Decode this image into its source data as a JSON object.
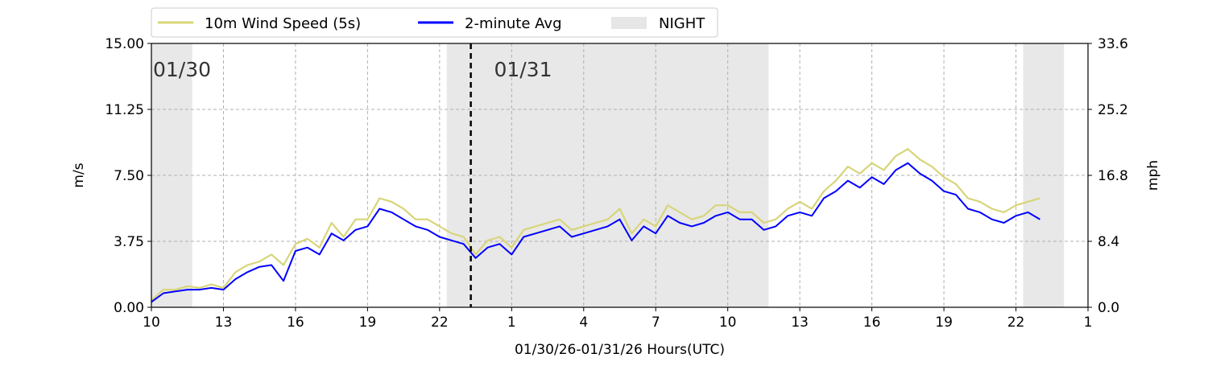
{
  "chart_data": {
    "type": "line",
    "title": "",
    "xlabel": "01/30/26-01/31/26  Hours(UTC)",
    "ylabel": "m/s",
    "ylabel_right": "mph",
    "ylim": [
      0,
      15
    ],
    "ylim_right": [
      0,
      33.6
    ],
    "xlim": [
      10,
      49
    ],
    "x_ticks": [
      10,
      13,
      16,
      19,
      22,
      25,
      28,
      31,
      34,
      37,
      40,
      43,
      46,
      49
    ],
    "x_tick_labels": [
      "10",
      "13",
      "16",
      "19",
      "22",
      "1",
      "4",
      "7",
      "10",
      "13",
      "16",
      "19",
      "22",
      "1"
    ],
    "y_ticks": [
      0,
      3.75,
      7.5,
      11.25,
      15
    ],
    "y_tick_labels": [
      "0.00",
      "3.75",
      "7.50",
      "11.25",
      "15.00"
    ],
    "y_ticks_right": [
      0,
      8.4,
      16.8,
      25.2,
      33.6
    ],
    "y_tick_labels_right": [
      "0.0",
      "8.4",
      "16.8",
      "25.2",
      "33.6"
    ],
    "grid": true,
    "legend_position": "top-left, above plot",
    "legend": [
      {
        "label": "10m Wind Speed (5s)",
        "color": "#d8d57a",
        "kind": "line"
      },
      {
        "label": "2-minute Avg",
        "color": "#0000ff",
        "kind": "line"
      },
      {
        "label": "NIGHT",
        "color": "#e6e6e6",
        "kind": "patch"
      }
    ],
    "night_periods": [
      [
        10,
        11.7
      ],
      [
        22.3,
        35.7
      ],
      [
        46.3,
        48.0
      ]
    ],
    "day_boundary": 23.3,
    "date_labels": [
      {
        "text": "01/30",
        "x": 10.0
      },
      {
        "text": "01/31",
        "x": 24.2
      }
    ],
    "series": [
      {
        "name": "10m Wind Speed (5s)",
        "color": "#d8d57a",
        "x": [
          10.0,
          10.5,
          11.0,
          11.5,
          12.0,
          12.5,
          13.0,
          13.5,
          14.0,
          14.5,
          15.0,
          15.5,
          16.0,
          16.5,
          17.0,
          17.5,
          18.0,
          18.5,
          19.0,
          19.5,
          20.0,
          20.5,
          21.0,
          21.5,
          22.0,
          22.5,
          23.0,
          23.5,
          24.0,
          24.5,
          25.0,
          25.5,
          26.0,
          26.5,
          27.0,
          27.5,
          28.0,
          28.5,
          29.0,
          29.5,
          30.0,
          30.5,
          31.0,
          31.5,
          32.0,
          32.5,
          33.0,
          33.5,
          34.0,
          34.5,
          35.0,
          35.5,
          36.0,
          36.5,
          37.0,
          37.5,
          38.0,
          38.5,
          39.0,
          39.5,
          40.0,
          40.5,
          41.0,
          41.5,
          42.0,
          42.5,
          43.0,
          43.5,
          44.0,
          44.5,
          45.0,
          45.5,
          46.0,
          46.5,
          47.0
        ],
        "y": [
          0.4,
          1.0,
          1.0,
          1.2,
          1.1,
          1.3,
          1.1,
          2.0,
          2.4,
          2.6,
          3.0,
          2.4,
          3.6,
          3.9,
          3.4,
          4.8,
          4.0,
          5.0,
          5.0,
          6.2,
          6.0,
          5.6,
          5.0,
          5.0,
          4.6,
          4.2,
          4.0,
          3.0,
          3.8,
          4.0,
          3.4,
          4.4,
          4.6,
          4.8,
          5.0,
          4.4,
          4.6,
          4.8,
          5.0,
          5.6,
          4.2,
          5.0,
          4.6,
          5.8,
          5.4,
          5.0,
          5.2,
          5.8,
          5.8,
          5.4,
          5.4,
          4.8,
          5.0,
          5.6,
          6.0,
          5.6,
          6.6,
          7.2,
          8.0,
          7.6,
          8.2,
          7.8,
          8.6,
          9.0,
          8.4,
          8.0,
          7.4,
          7.0,
          6.2,
          6.0,
          5.6,
          5.4,
          5.8,
          6.0,
          6.2
        ]
      },
      {
        "name": "2-minute Avg",
        "color": "#0000ff",
        "x": [
          10.0,
          10.5,
          11.0,
          11.5,
          12.0,
          12.5,
          13.0,
          13.5,
          14.0,
          14.5,
          15.0,
          15.5,
          16.0,
          16.5,
          17.0,
          17.5,
          18.0,
          18.5,
          19.0,
          19.5,
          20.0,
          20.5,
          21.0,
          21.5,
          22.0,
          22.5,
          23.0,
          23.5,
          24.0,
          24.5,
          25.0,
          25.5,
          26.0,
          26.5,
          27.0,
          27.5,
          28.0,
          28.5,
          29.0,
          29.5,
          30.0,
          30.5,
          31.0,
          31.5,
          32.0,
          32.5,
          33.0,
          33.5,
          34.0,
          34.5,
          35.0,
          35.5,
          36.0,
          36.5,
          37.0,
          37.5,
          38.0,
          38.5,
          39.0,
          39.5,
          40.0,
          40.5,
          41.0,
          41.5,
          42.0,
          42.5,
          43.0,
          43.5,
          44.0,
          44.5,
          45.0,
          45.5,
          46.0,
          46.5,
          47.0
        ],
        "y": [
          0.3,
          0.8,
          0.9,
          1.0,
          1.0,
          1.1,
          1.0,
          1.6,
          2.0,
          2.3,
          2.4,
          1.5,
          3.2,
          3.4,
          3.0,
          4.2,
          3.8,
          4.4,
          4.6,
          5.6,
          5.4,
          5.0,
          4.6,
          4.4,
          4.0,
          3.8,
          3.6,
          2.8,
          3.4,
          3.6,
          3.0,
          4.0,
          4.2,
          4.4,
          4.6,
          4.0,
          4.2,
          4.4,
          4.6,
          5.0,
          3.8,
          4.6,
          4.2,
          5.2,
          4.8,
          4.6,
          4.8,
          5.2,
          5.4,
          5.0,
          5.0,
          4.4,
          4.6,
          5.2,
          5.4,
          5.2,
          6.2,
          6.6,
          7.2,
          6.8,
          7.4,
          7.0,
          7.8,
          8.2,
          7.6,
          7.2,
          6.6,
          6.4,
          5.6,
          5.4,
          5.0,
          4.8,
          5.2,
          5.4,
          5.0
        ]
      }
    ]
  }
}
